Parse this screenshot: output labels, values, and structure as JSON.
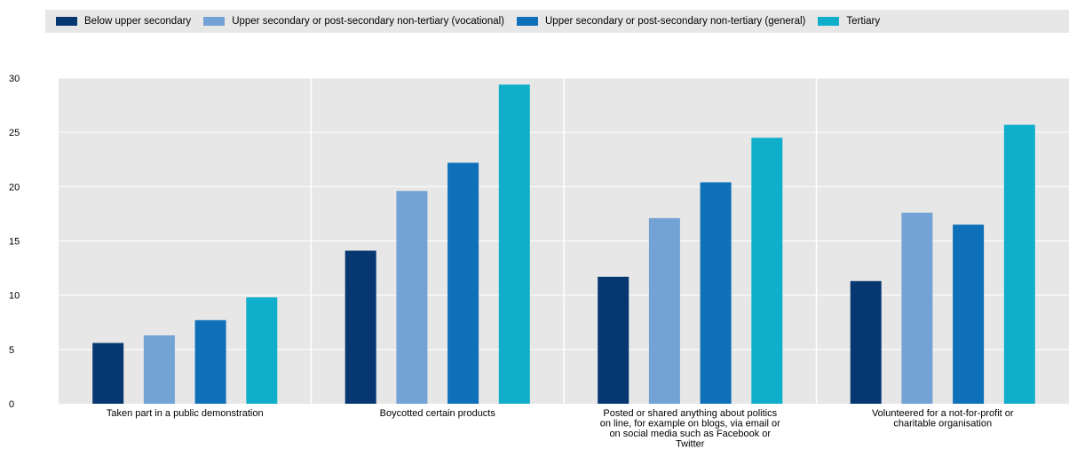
{
  "chart_data": {
    "type": "bar",
    "categories": [
      [
        "Taken part in a public demonstration"
      ],
      [
        "Boycotted certain products"
      ],
      [
        "Posted or shared anything about politics",
        "on line, for example on blogs, via email or",
        "on social media such as Facebook or",
        "Twitter"
      ],
      [
        "Volunteered for a not-for-profit or",
        "charitable organisation"
      ]
    ],
    "series": [
      {
        "name": "Below upper secondary",
        "color": "#063770",
        "values": [
          5.6,
          14.1,
          11.7,
          11.3
        ]
      },
      {
        "name": "Upper secondary or post-secondary non-tertiary (vocational)",
        "color": "#73a2d4",
        "values": [
          6.3,
          19.6,
          17.1,
          17.6
        ]
      },
      {
        "name": "Upper secondary or post-secondary non-tertiary (general)",
        "color": "#0e70b8",
        "values": [
          7.7,
          22.2,
          20.4,
          16.5
        ]
      },
      {
        "name": "Tertiary",
        "color": "#0faecb",
        "values": [
          9.8,
          29.4,
          24.5,
          25.7
        ]
      }
    ],
    "ylim": [
      0,
      30
    ],
    "yticks": [
      0,
      5,
      10,
      15,
      20,
      25,
      30
    ],
    "xlabel": "",
    "ylabel": "",
    "grid": true,
    "legend": "top"
  }
}
